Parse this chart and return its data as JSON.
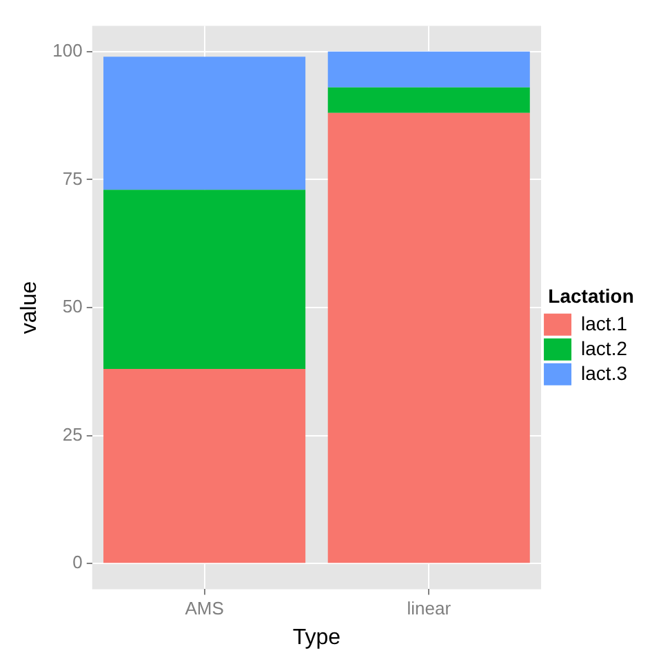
{
  "chart_data": {
    "type": "bar",
    "xlabel": "Type",
    "ylabel": "value",
    "legend_title": "Lactation",
    "categories": [
      "AMS",
      "linear"
    ],
    "stacked": true,
    "ylim": [
      -5,
      105
    ],
    "yticks": [
      0,
      25,
      50,
      75,
      100
    ],
    "grid": true,
    "legend": "right",
    "series": [
      {
        "name": "lact.1",
        "color": "#f8766d",
        "values": [
          38,
          88
        ]
      },
      {
        "name": "lact.2",
        "color": "#00ba38",
        "values": [
          35,
          5
        ]
      },
      {
        "name": "lact.3",
        "color": "#619cff",
        "values": [
          26,
          7
        ]
      }
    ]
  }
}
